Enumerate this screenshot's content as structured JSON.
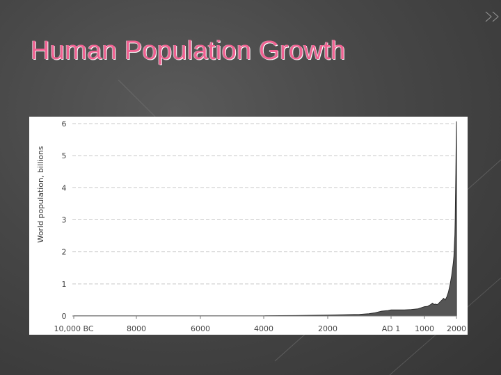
{
  "slide": {
    "title": "Human Population Growth",
    "title_color": "#f06292",
    "background_color": "#474747"
  },
  "chart_data": {
    "type": "area",
    "title": "",
    "xlabel": "",
    "ylabel": "World population, billions",
    "x_unit": "year (negative = BC)",
    "xlim": [
      -10000,
      2000
    ],
    "ylim": [
      0,
      6
    ],
    "grid": "horizontal dashed",
    "legend": "none",
    "fill_color": "#555555",
    "x_ticks": [
      {
        "value": -10000,
        "label": "10,000 BC"
      },
      {
        "value": -8000,
        "label": "8000"
      },
      {
        "value": -6000,
        "label": "6000"
      },
      {
        "value": -4000,
        "label": "4000"
      },
      {
        "value": -2000,
        "label": "2000"
      },
      {
        "value": 1,
        "label": "AD 1"
      },
      {
        "value": 1000,
        "label": "1000"
      },
      {
        "value": 2000,
        "label": "2000"
      }
    ],
    "y_ticks": [
      {
        "value": 0,
        "label": "0"
      },
      {
        "value": 1,
        "label": "1"
      },
      {
        "value": 2,
        "label": "2"
      },
      {
        "value": 3,
        "label": "3"
      },
      {
        "value": 4,
        "label": "4"
      },
      {
        "value": 5,
        "label": "5"
      },
      {
        "value": 6,
        "label": "6"
      }
    ],
    "series": [
      {
        "x": [
          -10000,
          -8000,
          -6000,
          -5000,
          -4000,
          -3000,
          -2000,
          -1500,
          -1000,
          -700,
          -500,
          -300,
          -200,
          -100,
          1,
          200,
          400,
          600,
          800,
          1000,
          1100,
          1200,
          1250,
          1300,
          1350,
          1400,
          1500,
          1600,
          1650,
          1700,
          1750,
          1800,
          1850,
          1900,
          1920,
          1940,
          1950,
          1960,
          1970,
          1980,
          1990,
          2000
        ],
        "y": [
          0.004,
          0.005,
          0.005,
          0.005,
          0.007,
          0.014,
          0.027,
          0.04,
          0.05,
          0.07,
          0.1,
          0.15,
          0.16,
          0.17,
          0.19,
          0.19,
          0.19,
          0.2,
          0.22,
          0.29,
          0.3,
          0.36,
          0.4,
          0.36,
          0.37,
          0.35,
          0.45,
          0.55,
          0.5,
          0.6,
          0.75,
          0.98,
          1.26,
          1.65,
          1.86,
          2.3,
          2.52,
          3.02,
          3.7,
          4.44,
          5.27,
          6.07
        ]
      }
    ]
  }
}
